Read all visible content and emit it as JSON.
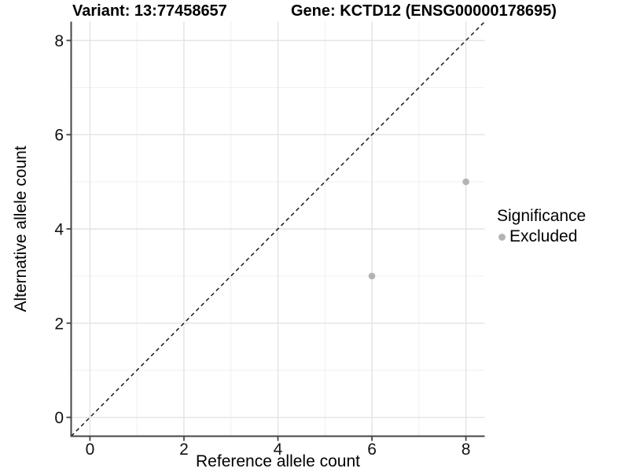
{
  "titles": {
    "variant": "Variant: 13:77458657",
    "gene": "Gene: KCTD12 (ENSG00000178695)"
  },
  "chart_data": {
    "type": "scatter",
    "title": "Variant: 13:77458657  /  Gene: KCTD12 (ENSG00000178695)",
    "xlabel": "Reference allele count",
    "ylabel": "Alternative allele count",
    "xlim": [
      -0.4,
      8.4
    ],
    "ylim": [
      -0.4,
      8.4
    ],
    "x_ticks": [
      0,
      2,
      4,
      6,
      8
    ],
    "y_ticks": [
      0,
      2,
      4,
      6,
      8
    ],
    "x_minor_ticks": [
      1,
      3,
      5,
      7
    ],
    "y_minor_ticks": [
      1,
      3,
      5,
      7
    ],
    "grid": "on",
    "series": [
      {
        "name": "Excluded",
        "color": "#b3b3b3",
        "points": [
          {
            "x": 6,
            "y": 3
          },
          {
            "x": 8,
            "y": 5
          }
        ]
      }
    ],
    "reference_line": {
      "type": "identity y=x",
      "style": "dashed",
      "color": "#1a1a1a",
      "from": [
        -0.4,
        -0.4
      ],
      "to": [
        8.4,
        8.4
      ]
    },
    "legend": {
      "position": "right",
      "title": "Significance",
      "entries": [
        {
          "label": "Excluded",
          "color": "#b3b3b3",
          "marker": "circle"
        }
      ]
    }
  },
  "styles": {
    "background": "#ffffff",
    "grid_major": "#e3e3e3",
    "grid_minor": "#efefef",
    "axis_line": "#454545",
    "text": "#000000",
    "point_color": "#b3b3b3",
    "point_radius": 4.3
  }
}
